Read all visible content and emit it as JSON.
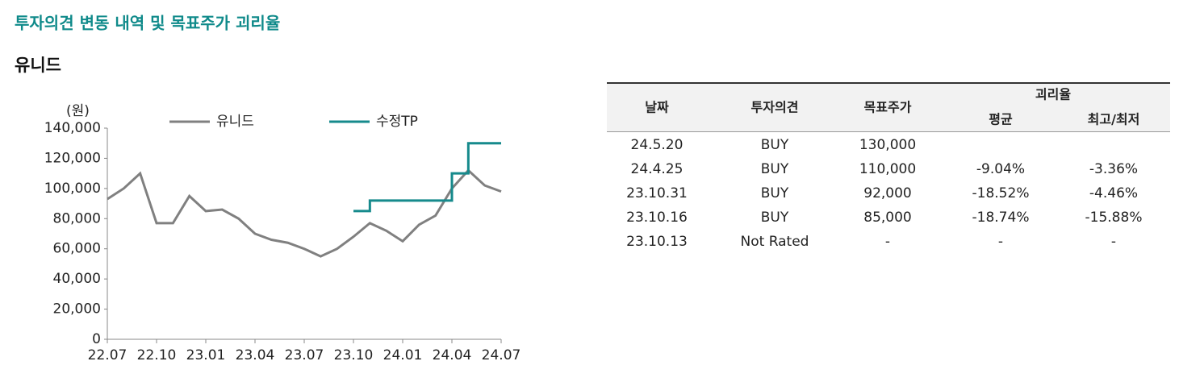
{
  "header": {
    "title": "투자의견 변동 내역 및 목표주가 괴리율",
    "company": "유니드"
  },
  "chart_data": {
    "type": "line",
    "ylabel": "(원)",
    "legend": "top",
    "x": [
      "22.07",
      "22.08",
      "22.09",
      "22.10",
      "22.11",
      "22.12",
      "23.01",
      "23.02",
      "23.03",
      "23.04",
      "23.05",
      "23.06",
      "23.07",
      "23.08",
      "23.09",
      "23.10",
      "23.11",
      "23.12",
      "24.01",
      "24.02",
      "24.03",
      "24.04",
      "24.05",
      "24.06",
      "24.07"
    ],
    "xticks": [
      "22.07",
      "22.10",
      "23.01",
      "23.04",
      "23.07",
      "23.10",
      "24.01",
      "24.04",
      "24.07"
    ],
    "ylim": [
      0,
      140000
    ],
    "yticks": [
      0,
      {
        "value": 20000,
        "label": "20,000"
      },
      {
        "value": 40000,
        "label": "40,000"
      },
      {
        "value": 60000,
        "label": "60,000"
      },
      {
        "value": 80000,
        "label": "80,000"
      },
      {
        "value": 100000,
        "label": "100,000"
      },
      {
        "value": 120000,
        "label": "120,000"
      },
      {
        "value": 140000,
        "label": "140,000"
      }
    ],
    "series": [
      {
        "name": "유니드",
        "color": "#808080",
        "values": [
          93000,
          100000,
          110000,
          77000,
          77000,
          95000,
          85000,
          86000,
          80000,
          70000,
          66000,
          64000,
          60000,
          55000,
          60000,
          68000,
          77000,
          72000,
          65000,
          76000,
          82000,
          100000,
          112000,
          102000,
          98000
        ]
      },
      {
        "name": "수정TP",
        "color": "#168a8c",
        "drawstyle": "steps",
        "values": [
          null,
          null,
          null,
          null,
          null,
          null,
          null,
          null,
          null,
          null,
          null,
          null,
          null,
          null,
          null,
          85000,
          92000,
          92000,
          92000,
          92000,
          92000,
          110000,
          130000,
          130000,
          130000
        ]
      }
    ]
  },
  "table": {
    "columns": [
      "날짜",
      "투자의견",
      "목표주가",
      "괴리율"
    ],
    "subcolumns": [
      "평균",
      "최고/최저"
    ],
    "rows": [
      {
        "date": "24.5.20",
        "opinion": "BUY",
        "target": "130,000"
      },
      {
        "date": "24.4.25",
        "opinion": "BUY",
        "target": "110,000",
        "avg": "-9.04%",
        "minmax": "-3.36%"
      },
      {
        "date": "23.10.31",
        "opinion": "BUY",
        "target": "92,000",
        "avg": "-18.52%",
        "minmax": "-4.46%"
      },
      {
        "date": "23.10.16",
        "opinion": "BUY",
        "target": "85,000",
        "avg": "-18.74%",
        "minmax": "-15.88%"
      },
      {
        "date": "23.10.13",
        "opinion": "Not Rated",
        "target": "-",
        "avg": "-",
        "minmax": "-"
      }
    ]
  }
}
